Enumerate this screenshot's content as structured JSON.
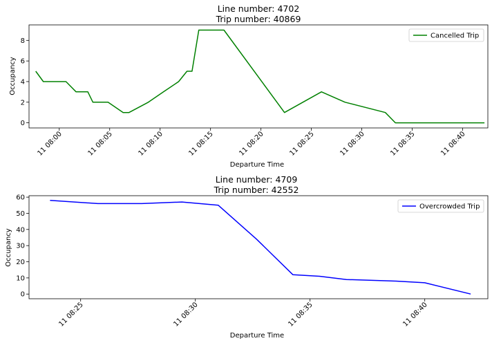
{
  "chart_data": [
    {
      "type": "line",
      "title_line1": "Line number: 4702",
      "title_line2": "Trip number: 40869",
      "xlabel": "Departure Time",
      "ylabel": "Occupancy",
      "legend_position": "top-right",
      "xlim": [
        "11 07:57:00",
        "11 08:42:30"
      ],
      "ylim": [
        -0.5,
        9.5
      ],
      "yticks": [
        "0",
        "2",
        "4",
        "6",
        "8"
      ],
      "xticks": [
        {
          "t": "11 08:00:00",
          "label": "11 08:00"
        },
        {
          "t": "11 08:05:00",
          "label": "11 08:05"
        },
        {
          "t": "11 08:10:00",
          "label": "11 08:10"
        },
        {
          "t": "11 08:15:00",
          "label": "11 08:15"
        },
        {
          "t": "11 08:20:00",
          "label": "11 08:20"
        },
        {
          "t": "11 08:25:00",
          "label": "11 08:25"
        },
        {
          "t": "11 08:30:00",
          "label": "11 08:30"
        },
        {
          "t": "11 08:35:00",
          "label": "11 08:35"
        },
        {
          "t": "11 08:40:00",
          "label": "11 08:40"
        }
      ],
      "series": [
        {
          "name": "Cancelled Trip",
          "color": "#008000",
          "points": [
            [
              "11 07:57:40",
              5
            ],
            [
              "11 07:58:25",
              4
            ],
            [
              "11 08:00:40",
              4
            ],
            [
              "11 08:01:40",
              3
            ],
            [
              "11 08:02:50",
              3
            ],
            [
              "11 08:03:20",
              2
            ],
            [
              "11 08:04:50",
              2
            ],
            [
              "11 08:06:20",
              1
            ],
            [
              "11 08:06:55",
              1
            ],
            [
              "11 08:08:50",
              2
            ],
            [
              "11 08:10:20",
              3
            ],
            [
              "11 08:11:50",
              4
            ],
            [
              "11 08:12:40",
              5
            ],
            [
              "11 08:13:10",
              5
            ],
            [
              "11 08:13:50",
              9
            ],
            [
              "11 08:16:20",
              9
            ],
            [
              "11 08:22:20",
              1
            ],
            [
              "11 08:26:00",
              3
            ],
            [
              "11 08:28:20",
              2
            ],
            [
              "11 08:32:20",
              1
            ],
            [
              "11 08:33:20",
              0
            ],
            [
              "11 08:42:10",
              0
            ]
          ]
        }
      ]
    },
    {
      "type": "line",
      "title_line1": "Line number: 4709",
      "title_line2": "Trip number: 42552",
      "xlabel": "Departure Time",
      "ylabel": "Occupancy",
      "legend_position": "top-right",
      "xlim": [
        "11 08:22:45",
        "11 08:42:45"
      ],
      "ylim": [
        -2.9,
        60.9
      ],
      "yticks": [
        "0",
        "10",
        "20",
        "30",
        "40",
        "50",
        "60"
      ],
      "xticks": [
        {
          "t": "11 08:25:00",
          "label": "11 08:25"
        },
        {
          "t": "11 08:30:00",
          "label": "11 08:30"
        },
        {
          "t": "11 08:35:00",
          "label": "11 08:35"
        },
        {
          "t": "11 08:40:00",
          "label": "11 08:40"
        }
      ],
      "series": [
        {
          "name": "Overcrowded Trip",
          "color": "#0000ff",
          "points": [
            [
              "11 08:23:40",
              58
            ],
            [
              "11 08:25:45",
              56
            ],
            [
              "11 08:27:40",
              56
            ],
            [
              "11 08:29:25",
              57
            ],
            [
              "11 08:31:00",
              55
            ],
            [
              "11 08:32:40",
              34
            ],
            [
              "11 08:34:15",
              12
            ],
            [
              "11 08:35:25",
              11
            ],
            [
              "11 08:36:35",
              9
            ],
            [
              "11 08:38:45",
              8
            ],
            [
              "11 08:40:00",
              7
            ],
            [
              "11 08:42:00",
              0
            ]
          ]
        }
      ]
    }
  ]
}
